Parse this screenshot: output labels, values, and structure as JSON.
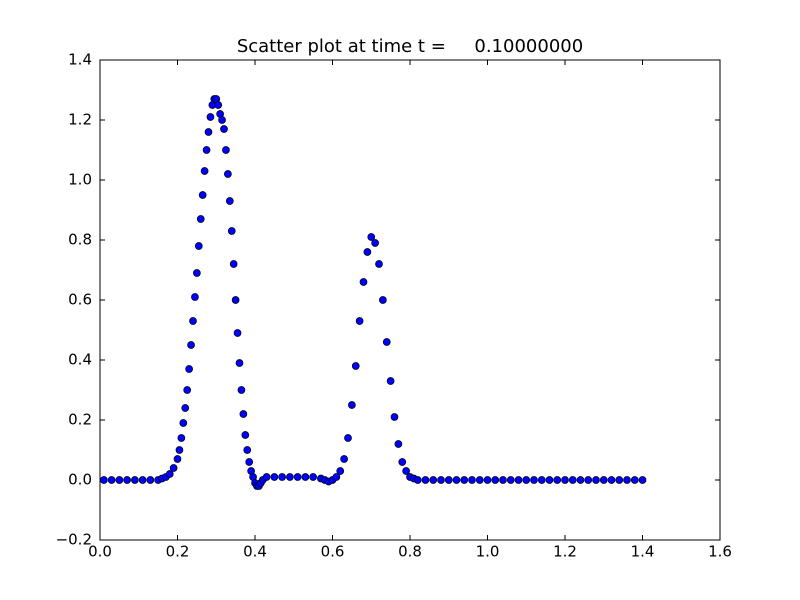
{
  "chart_data": {
    "type": "scatter",
    "title": "Scatter plot at time t =     0.10000000",
    "xlim": [
      0,
      1.6
    ],
    "ylim": [
      -0.2,
      1.4
    ],
    "xticks": [
      {
        "value": 0,
        "label": "0.0"
      },
      {
        "value": 0.2,
        "label": "0.2"
      },
      {
        "value": 0.4,
        "label": "0.4"
      },
      {
        "value": 0.6,
        "label": "0.6"
      },
      {
        "value": 0.8,
        "label": "0.8"
      },
      {
        "value": 1.0,
        "label": "1.0"
      },
      {
        "value": 1.2,
        "label": "1.2"
      },
      {
        "value": 1.4,
        "label": "1.4"
      },
      {
        "value": 1.6,
        "label": "1.6"
      }
    ],
    "yticks": [
      {
        "value": -0.2,
        "label": "−0.2"
      },
      {
        "value": 0,
        "label": "0.0"
      },
      {
        "value": 0.2,
        "label": "0.2"
      },
      {
        "value": 0.4,
        "label": "0.4"
      },
      {
        "value": 0.6,
        "label": "0.6"
      },
      {
        "value": 0.8,
        "label": "0.8"
      },
      {
        "value": 1.0,
        "label": "1.0"
      },
      {
        "value": 1.2,
        "label": "1.2"
      },
      {
        "value": 1.4,
        "label": "1.4"
      }
    ],
    "series": [
      {
        "color": "#0000ff",
        "x": [
          0.01,
          0.03,
          0.05,
          0.07,
          0.09,
          0.11,
          0.13,
          0.15,
          0.16,
          0.17,
          0.18,
          0.19,
          0.2,
          0.205,
          0.21,
          0.215,
          0.22,
          0.225,
          0.23,
          0.235,
          0.24,
          0.245,
          0.25,
          0.255,
          0.26,
          0.265,
          0.27,
          0.275,
          0.28,
          0.285,
          0.29,
          0.295,
          0.3,
          0.305,
          0.31,
          0.315,
          0.32,
          0.325,
          0.33,
          0.335,
          0.34,
          0.345,
          0.35,
          0.355,
          0.36,
          0.365,
          0.37,
          0.375,
          0.38,
          0.385,
          0.39,
          0.395,
          0.4,
          0.405,
          0.41,
          0.415,
          0.42,
          0.43,
          0.45,
          0.47,
          0.49,
          0.51,
          0.53,
          0.55,
          0.57,
          0.58,
          0.59,
          0.6,
          0.61,
          0.62,
          0.63,
          0.64,
          0.65,
          0.66,
          0.67,
          0.68,
          0.69,
          0.7,
          0.71,
          0.72,
          0.73,
          0.74,
          0.75,
          0.76,
          0.77,
          0.78,
          0.79,
          0.8,
          0.81,
          0.82,
          0.84,
          0.86,
          0.88,
          0.9,
          0.92,
          0.94,
          0.96,
          0.98,
          1.0,
          1.02,
          1.04,
          1.06,
          1.08,
          1.1,
          1.12,
          1.14,
          1.16,
          1.18,
          1.2,
          1.22,
          1.24,
          1.26,
          1.28,
          1.3,
          1.32,
          1.34,
          1.36,
          1.38,
          1.4
        ],
        "values": [
          0,
          0,
          0,
          0,
          0,
          0,
          0,
          0,
          0.005,
          0.01,
          0.02,
          0.04,
          0.07,
          0.1,
          0.14,
          0.19,
          0.24,
          0.3,
          0.37,
          0.45,
          0.53,
          0.61,
          0.69,
          0.78,
          0.87,
          0.95,
          1.03,
          1.1,
          1.16,
          1.21,
          1.25,
          1.27,
          1.27,
          1.25,
          1.22,
          1.2,
          1.17,
          1.1,
          1.02,
          0.93,
          0.83,
          0.72,
          0.6,
          0.49,
          0.39,
          0.3,
          0.22,
          0.15,
          0.1,
          0.06,
          0.03,
          0.01,
          -0.01,
          -0.02,
          -0.02,
          -0.01,
          0,
          0.01,
          0.01,
          0.01,
          0.01,
          0.01,
          0.01,
          0.01,
          0.005,
          0,
          -0.005,
          0,
          0.01,
          0.03,
          0.07,
          0.14,
          0.25,
          0.38,
          0.53,
          0.66,
          0.76,
          0.81,
          0.79,
          0.72,
          0.6,
          0.46,
          0.33,
          0.21,
          0.12,
          0.06,
          0.03,
          0.01,
          0.005,
          0,
          0,
          0,
          0,
          0,
          0,
          0,
          0,
          0,
          0,
          0,
          0,
          0,
          0,
          0,
          0,
          0,
          0,
          0,
          0,
          0,
          0,
          0,
          0,
          0,
          0,
          0,
          0,
          0,
          0
        ]
      }
    ]
  }
}
